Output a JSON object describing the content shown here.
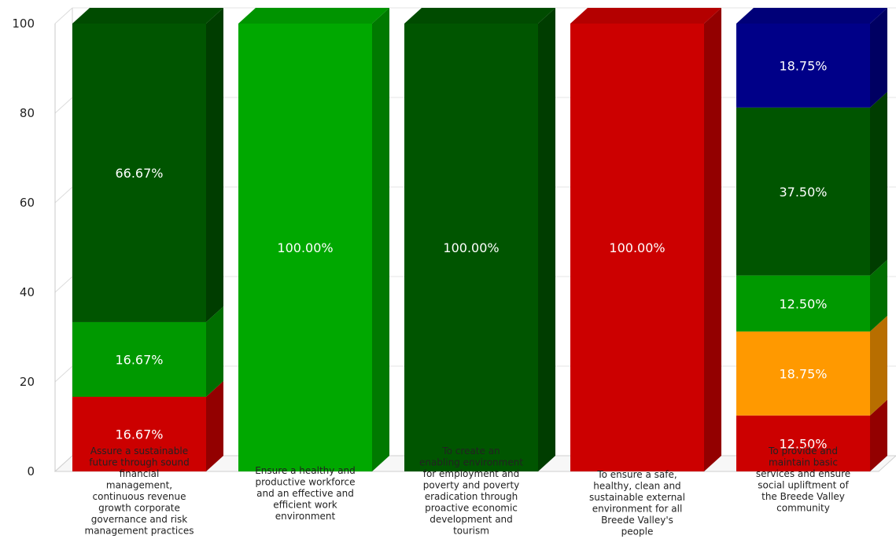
{
  "chart_data": {
    "type": "bar",
    "stacked": true,
    "three_d": true,
    "title": "",
    "xlabel": "",
    "ylabel": "",
    "ylim": [
      0,
      100
    ],
    "yticks": [
      0,
      20,
      40,
      60,
      80,
      100
    ],
    "grid": true,
    "categories": [
      "Assure a sustainable future through sound financial management, continuous revenue growth corporate governance and risk management practices",
      "Ensure a healthy and productive workforce and an effective and efficient work environment",
      "To create an enabling environment for employment and poverty and poverty eradication through proactive economic development and tourism",
      "To ensure a safe, healthy, clean and sustainable external environment for all Breede Valley's people",
      "To provide and maintain basic services and ensure social upliftment of the Breede Valley community"
    ],
    "category_lines": [
      [
        "Assure a sustainable",
        "future through sound",
        "financial",
        "management,",
        "continuous revenue",
        "growth corporate",
        "governance and risk",
        "management practices"
      ],
      [
        "Ensure a healthy and",
        "productive workforce",
        "and an effective and",
        "efficient work",
        "environment"
      ],
      [
        "To create an",
        "enabling environment",
        "for employment and",
        "poverty and poverty",
        "eradication through",
        "proactive economic",
        "development and",
        "tourism"
      ],
      [
        "To ensure a safe,",
        "healthy, clean and",
        "sustainable external",
        "environment for all",
        "Breede Valley's",
        "people"
      ],
      [
        "To provide and",
        "maintain basic",
        "services and ensure",
        "social upliftment of",
        "the Breede Valley",
        "community"
      ]
    ],
    "stacks": [
      [
        {
          "value": 16.67,
          "label": "16.67%",
          "color": "#cc0000"
        },
        {
          "value": 16.67,
          "label": "16.67%",
          "color": "#009900"
        },
        {
          "value": 66.67,
          "label": "66.67%",
          "color": "#005500"
        }
      ],
      [
        {
          "value": 100.0,
          "label": "100.00%",
          "color": "#00a800"
        }
      ],
      [
        {
          "value": 100.0,
          "label": "100.00%",
          "color": "#005500"
        }
      ],
      [
        {
          "value": 100.0,
          "label": "100.00%",
          "color": "#cc0000"
        }
      ],
      [
        {
          "value": 12.5,
          "label": "12.50%",
          "color": "#cc0000"
        },
        {
          "value": 18.75,
          "label": "18.75%",
          "color": "#ff9900"
        },
        {
          "value": 12.5,
          "label": "12.50%",
          "color": "#009900"
        },
        {
          "value": 37.5,
          "label": "37.50%",
          "color": "#005500"
        },
        {
          "value": 18.75,
          "label": "18.75%",
          "color": "#000088"
        }
      ]
    ]
  }
}
